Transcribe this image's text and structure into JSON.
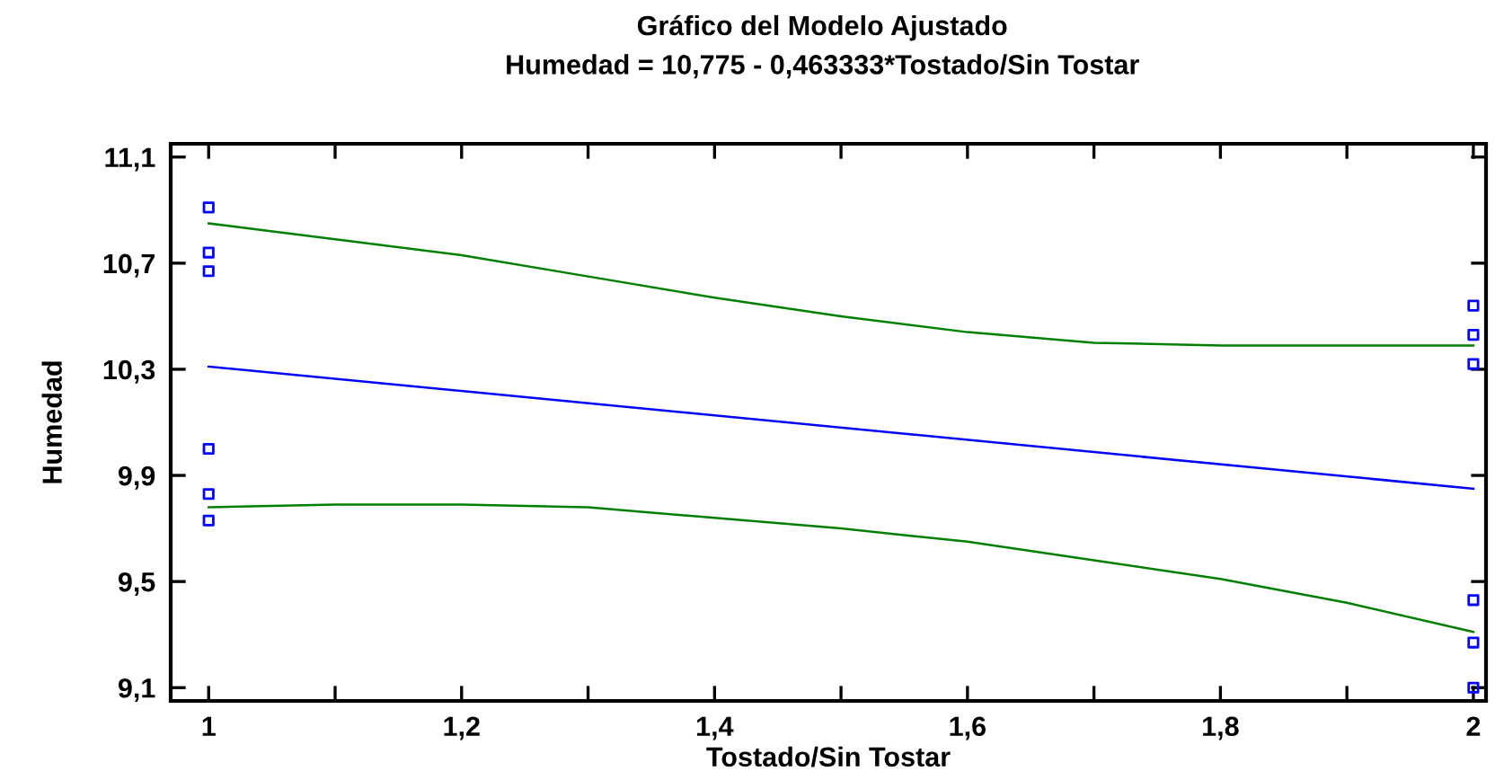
{
  "chart_data": {
    "type": "scatter",
    "title": "Gráfico del Modelo Ajustado",
    "subtitle": "Humedad = 10,775 - 0,463333*Tostado/Sin Tostar",
    "xlabel": "Tostado/Sin Tostar",
    "ylabel": "Humedad",
    "xlim": [
      0.97,
      2.01
    ],
    "ylim": [
      9.05,
      11.15
    ],
    "xticks": [
      {
        "value": 1,
        "label": "1"
      },
      {
        "value": 1.1,
        "label": null
      },
      {
        "value": 1.2,
        "label": "1,2"
      },
      {
        "value": 1.3,
        "label": null
      },
      {
        "value": 1.4,
        "label": "1,4"
      },
      {
        "value": 1.5,
        "label": null
      },
      {
        "value": 1.6,
        "label": "1,6"
      },
      {
        "value": 1.7,
        "label": null
      },
      {
        "value": 1.8,
        "label": "1,8"
      },
      {
        "value": 1.9,
        "label": null
      },
      {
        "value": 2,
        "label": "2"
      }
    ],
    "yticks": [
      {
        "value": 9.1,
        "label": "9,1"
      },
      {
        "value": 9.5,
        "label": "9,5"
      },
      {
        "value": 9.9,
        "label": "9,9"
      },
      {
        "value": 10.3,
        "label": "10,3"
      },
      {
        "value": 10.7,
        "label": "10,7"
      },
      {
        "value": 11.1,
        "label": "11,1"
      }
    ],
    "grid": false,
    "legend": false,
    "series": [
      {
        "marker": "square",
        "color": "#0000ff",
        "x": [
          1,
          1,
          1,
          1,
          1,
          1,
          2,
          2,
          2,
          2,
          2,
          2
        ],
        "values": [
          10.91,
          10.74,
          10.67,
          10.0,
          9.83,
          9.73,
          10.54,
          10.43,
          10.32,
          9.43,
          9.27,
          9.1
        ]
      },
      {
        "type": "line",
        "color": "#0000ff",
        "x": [
          1,
          2
        ],
        "values": [
          10.31,
          9.85
        ]
      },
      {
        "type": "line",
        "color": "#008000",
        "x": [
          1,
          1.1,
          1.2,
          1.3,
          1.4,
          1.5,
          1.6,
          1.7,
          1.8,
          1.9,
          2
        ],
        "values": [
          10.85,
          10.79,
          10.73,
          10.65,
          10.57,
          10.5,
          10.44,
          10.4,
          10.39,
          10.39,
          10.39
        ]
      },
      {
        "type": "line",
        "color": "#008000",
        "x": [
          1,
          1.1,
          1.2,
          1.3,
          1.4,
          1.5,
          1.6,
          1.7,
          1.8,
          1.9,
          2
        ],
        "values": [
          9.78,
          9.79,
          9.79,
          9.78,
          9.74,
          9.7,
          9.65,
          9.58,
          9.51,
          9.42,
          9.31
        ]
      }
    ]
  }
}
